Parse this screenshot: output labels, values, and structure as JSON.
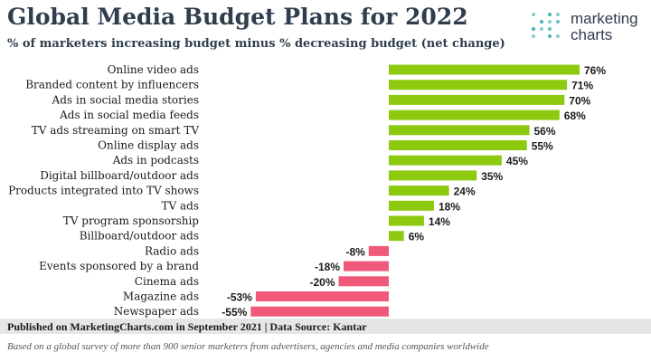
{
  "header": {
    "title": "Global Media Budget Plans for 2022",
    "subtitle": "% of marketers increasing budget minus % decreasing budget (net change)"
  },
  "logo": {
    "line1": "marketing",
    "line2": "charts",
    "dot_color": "#27a3ad"
  },
  "chart_data": {
    "type": "bar",
    "orientation": "horizontal",
    "title": "Global Media Budget Plans for 2022",
    "subtitle": "% of marketers increasing budget minus % decreasing budget (net change)",
    "categories": [
      "Online video ads",
      "Branded content by influencers",
      "Ads in social media stories",
      "Ads in social media feeds",
      "TV ads streaming on smart TV",
      "Online display ads",
      "Ads in podcasts",
      "Digital billboard/outdoor ads",
      "Products integrated into TV shows",
      "TV ads",
      "TV program sponsorship",
      "Billboard/outdoor ads",
      "Radio ads",
      "Events sponsored by a brand",
      "Cinema ads",
      "Magazine ads",
      "Newspaper ads"
    ],
    "values": [
      76,
      71,
      70,
      68,
      56,
      55,
      45,
      35,
      24,
      18,
      14,
      6,
      -8,
      -18,
      -20,
      -53,
      -55
    ],
    "value_labels": [
      "76%",
      "71%",
      "70%",
      "68%",
      "56%",
      "55%",
      "45%",
      "35%",
      "24%",
      "18%",
      "14%",
      "6%",
      "-8%",
      "-18%",
      "-20%",
      "-53%",
      "-55%"
    ],
    "unit": "%",
    "xlim": [
      -55,
      76
    ],
    "grid": false,
    "legend": "none",
    "colors": {
      "positive": "#8cc90f",
      "negative": "#f0597a"
    }
  },
  "footer": {
    "source": "Published on MarketingCharts.com in September 2021 | Data Source: Kantar",
    "note": "Based on a global survey of more than 900 senior marketers from advertisers, agencies and media companies worldwide"
  }
}
